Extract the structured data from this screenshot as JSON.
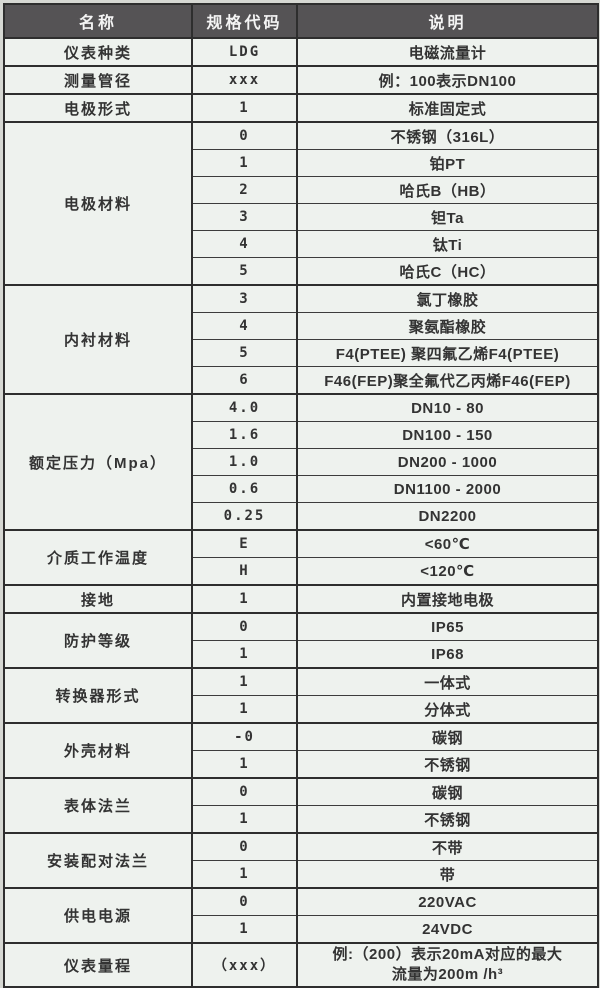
{
  "colors": {
    "header_bg": "#555355",
    "header_text": "#f4f4f4",
    "cell_bg": "#eef2ee",
    "border": "#2e2e2e",
    "page_bg": "#d6d8d3"
  },
  "table": {
    "headers": [
      "名称",
      "规格代码",
      "说明"
    ],
    "groups": [
      {
        "name": "仪表种类",
        "rows": [
          {
            "code": "LDG",
            "desc": "电磁流量计"
          }
        ]
      },
      {
        "name": "测量管径",
        "rows": [
          {
            "code": "xxx",
            "desc": "例：100表示DN100"
          }
        ]
      },
      {
        "name": "电极形式",
        "rows": [
          {
            "code": "1",
            "desc": "标准固定式"
          }
        ]
      },
      {
        "name": "电极材料",
        "rows": [
          {
            "code": "0",
            "desc": "不锈钢（316L）"
          },
          {
            "code": "1",
            "desc": "铂PT"
          },
          {
            "code": "2",
            "desc": "哈氏B（HB）"
          },
          {
            "code": "3",
            "desc": "钽Ta"
          },
          {
            "code": "4",
            "desc": "钛Ti"
          },
          {
            "code": "5",
            "desc": "哈氏C（HC）"
          }
        ]
      },
      {
        "name": "内衬材料",
        "rows": [
          {
            "code": "3",
            "desc": "氯丁橡胶"
          },
          {
            "code": "4",
            "desc": "聚氨酯橡胶"
          },
          {
            "code": "5",
            "desc": "F4(PTEE) 聚四氟乙烯F4(PTEE)"
          },
          {
            "code": "6",
            "desc": "F46(FEP)聚全氟代乙丙烯F46(FEP)"
          }
        ]
      },
      {
        "name": "额定压力（Mpa）",
        "rows": [
          {
            "code": "4.0",
            "desc": "DN10 - 80"
          },
          {
            "code": "1.6",
            "desc": "DN100 - 150"
          },
          {
            "code": "1.0",
            "desc": "DN200 - 1000"
          },
          {
            "code": "0.6",
            "desc": "DN1100 - 2000"
          },
          {
            "code": "0.25",
            "desc": "DN2200"
          }
        ]
      },
      {
        "name": "介质工作温度",
        "rows": [
          {
            "code": "E",
            "desc": "<60℃"
          },
          {
            "code": "H",
            "desc": "<120℃"
          }
        ]
      },
      {
        "name": "接地",
        "rows": [
          {
            "code": "1",
            "desc": "内置接地电极"
          }
        ]
      },
      {
        "name": "防护等级",
        "rows": [
          {
            "code": "0",
            "desc": "IP65"
          },
          {
            "code": "1",
            "desc": "IP68"
          }
        ]
      },
      {
        "name": "转换器形式",
        "rows": [
          {
            "code": "1",
            "desc": "一体式"
          },
          {
            "code": "1",
            "desc": "分体式"
          }
        ]
      },
      {
        "name": "外壳材料",
        "rows": [
          {
            "code": "-0",
            "desc": "碳钢"
          },
          {
            "code": "1",
            "desc": "不锈钢"
          }
        ]
      },
      {
        "name": "表体法兰",
        "rows": [
          {
            "code": "0",
            "desc": "碳钢"
          },
          {
            "code": "1",
            "desc": "不锈钢"
          }
        ]
      },
      {
        "name": "安装配对法兰",
        "rows": [
          {
            "code": "0",
            "desc": "不带"
          },
          {
            "code": "1",
            "desc": "带"
          }
        ]
      },
      {
        "name": "供电电源",
        "rows": [
          {
            "code": "0",
            "desc": "220VAC"
          },
          {
            "code": "1",
            "desc": "24VDC"
          }
        ]
      },
      {
        "name": "仪表量程",
        "rows": [
          {
            "code": "（xxx）",
            "desc": "例:（200）表示20mA对应的最大",
            "desc2": "流量为200m /h³"
          }
        ]
      }
    ]
  }
}
